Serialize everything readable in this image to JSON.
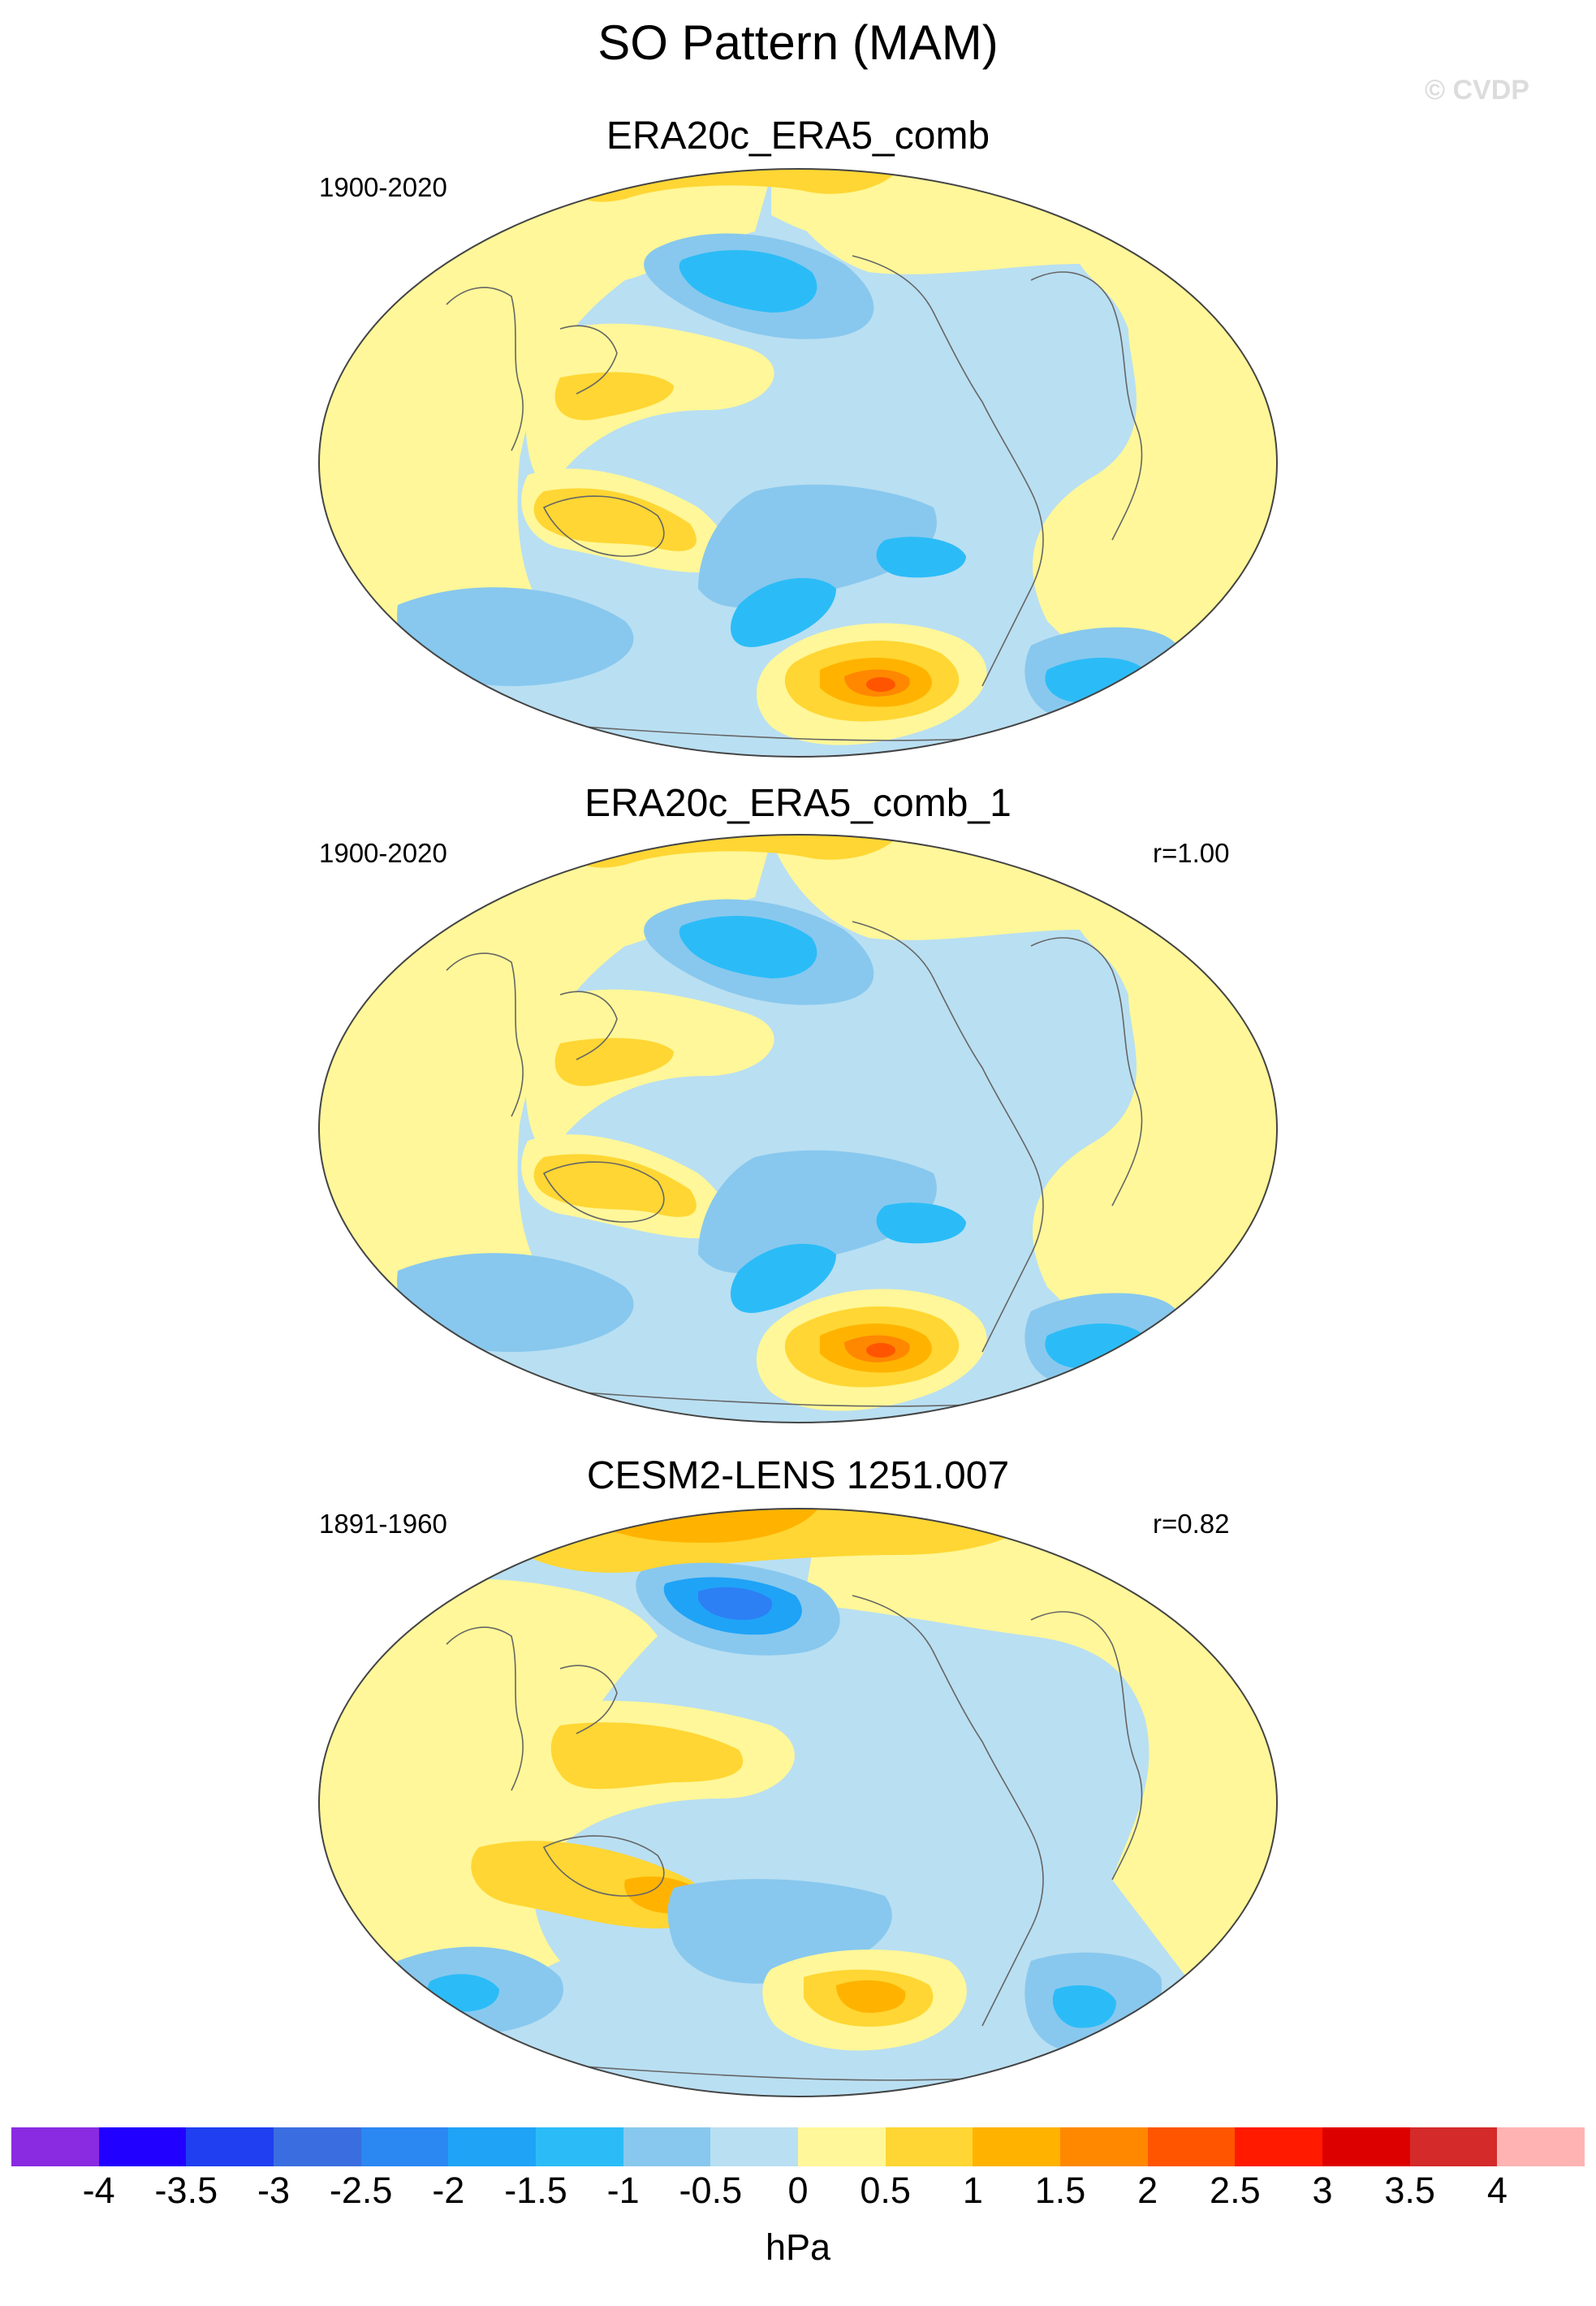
{
  "title": "SO Pattern (MAM)",
  "watermark": "© CVDP",
  "colors": {
    "ocean_light_blue": "#b9dff2",
    "blue_1": "#88c8ee",
    "blue_2": "#2bbcf7",
    "blue_3": "#1fa3f7",
    "blue_4": "#2d7ff4",
    "yellow_1": "#fff799",
    "yellow_2": "#ffd633",
    "orange_1": "#ffb300",
    "orange_2": "#ff8800",
    "red_1": "#ff5500",
    "coast": "#666666"
  },
  "panels": [
    {
      "title": "ERA20c_ERA5_comb",
      "period": "1900-2020",
      "r": ""
    },
    {
      "title": "ERA20c_ERA5_comb_1",
      "period": "1900-2020",
      "r": "r=1.00"
    },
    {
      "title": "CESM2-LENS 1251.007",
      "period": "1891-1960",
      "r": "r=0.82"
    }
  ],
  "colorbar": {
    "unit": "hPa",
    "labels": [
      "-4",
      "-3.5",
      "-3",
      "-2.5",
      "-2",
      "-1.5",
      "-1",
      "-0.5",
      "0",
      "0.5",
      "1",
      "1.5",
      "2",
      "2.5",
      "3",
      "3.5",
      "4"
    ],
    "colors": [
      "#8a2be2",
      "#2200ff",
      "#1f3ff0",
      "#3a6ee0",
      "#2b87f2",
      "#1fa3f7",
      "#2bbcf7",
      "#88c8ee",
      "#b9dff2",
      "#fff799",
      "#ffd633",
      "#ffb300",
      "#ff8800",
      "#ff5500",
      "#ff1a00",
      "#dd0000",
      "#d42a2a",
      "#ffb3b3"
    ]
  }
}
